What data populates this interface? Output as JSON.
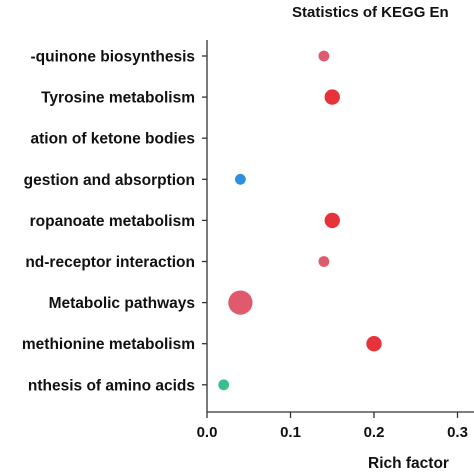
{
  "chart_data": {
    "type": "scatter",
    "title": "Statistics of KEGG En",
    "xlabel": "Rich factor",
    "ylabel": "",
    "xlim": [
      0.0,
      0.3
    ],
    "x_ticks": [
      "0.0",
      "0.1",
      "0.2",
      "0.3"
    ],
    "categories": [
      "-quinone biosynthesis",
      "Tyrosine metabolism",
      "ation of ketone bodies",
      "gestion and absorption",
      "ropanoate metabolism",
      "nd-receptor interaction",
      "Metabolic pathways",
      "methionine metabolism",
      "nthesis of amino acids"
    ],
    "points": [
      {
        "category": "-quinone biosynthesis",
        "x": 0.14,
        "size": 1,
        "color": "#e05a6e"
      },
      {
        "category": "Tyrosine metabolism",
        "x": 0.15,
        "size": 3,
        "color": "#e8323a"
      },
      {
        "category": "ation of ketone bodies",
        "x": null,
        "size": 0,
        "color": "#ffffff"
      },
      {
        "category": "gestion and absorption",
        "x": 0.04,
        "size": 1,
        "color": "#2f8fd8"
      },
      {
        "category": "ropanoate metabolism",
        "x": 0.15,
        "size": 3,
        "color": "#e8323a"
      },
      {
        "category": "nd-receptor interaction",
        "x": 0.14,
        "size": 1,
        "color": "#e05a6e"
      },
      {
        "category": "Metabolic pathways",
        "x": 0.04,
        "size": 10,
        "color": "#e05a6e"
      },
      {
        "category": "methionine metabolism",
        "x": 0.2,
        "size": 3,
        "color": "#e8323a"
      },
      {
        "category": "nthesis of amino acids",
        "x": 0.02,
        "size": 1,
        "color": "#3bbf8a"
      }
    ],
    "grid": false,
    "legend": "none"
  }
}
